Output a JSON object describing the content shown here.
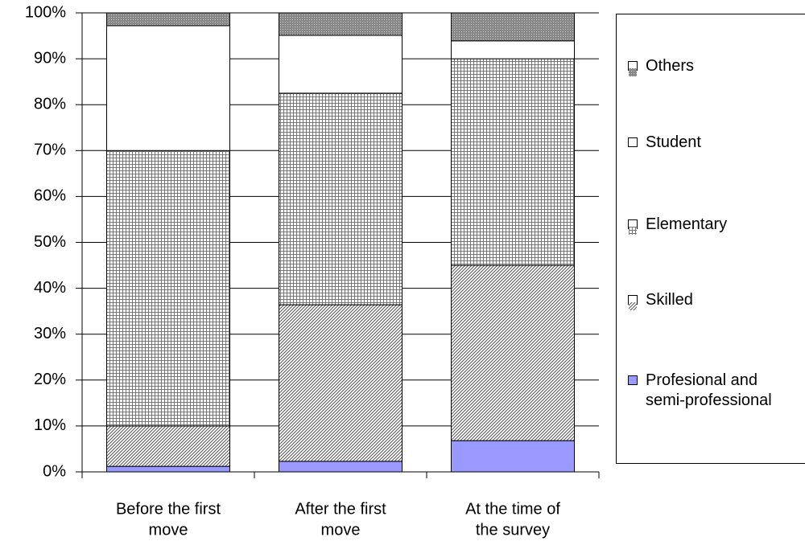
{
  "chart_data": {
    "type": "stacked_bar",
    "categories": [
      [
        "Before the first",
        "move"
      ],
      [
        "After the  first",
        "move"
      ],
      [
        "At the time of",
        "the survey"
      ]
    ],
    "series": [
      {
        "name": "Profesional and semi-professional",
        "color": "#9999ff",
        "pattern": "solid",
        "values": [
          1.2,
          2.3,
          6.8
        ]
      },
      {
        "name": "Skilled",
        "color": "#b0b0b0",
        "pattern": "diagonal",
        "values": [
          8.8,
          34.1,
          38.2
        ]
      },
      {
        "name": "Elementary",
        "color": "#b0b0b0",
        "pattern": "grid",
        "values": [
          60,
          46.1,
          45
        ]
      },
      {
        "name": "Student",
        "color": "#ffffff",
        "pattern": "solid",
        "values": [
          27.2,
          12.6,
          3.9
        ]
      },
      {
        "name": "Others",
        "color": "#808080",
        "pattern": "dots",
        "values": [
          2.8,
          4.9,
          6.1
        ]
      }
    ],
    "ylim": [
      0,
      100
    ],
    "yticks": [
      {
        "value": 0,
        "label": "0%"
      },
      {
        "value": 10,
        "label": "10%"
      },
      {
        "value": 20,
        "label": "20%"
      },
      {
        "value": 30,
        "label": "30%"
      },
      {
        "value": 40,
        "label": "40%"
      },
      {
        "value": 50,
        "label": "50%"
      },
      {
        "value": 60,
        "label": "60%"
      },
      {
        "value": 70,
        "label": "70%"
      },
      {
        "value": 80,
        "label": "80%"
      },
      {
        "value": 90,
        "label": "90%"
      },
      {
        "value": 100,
        "label": "100%"
      }
    ],
    "grid": true,
    "legend": "right"
  }
}
